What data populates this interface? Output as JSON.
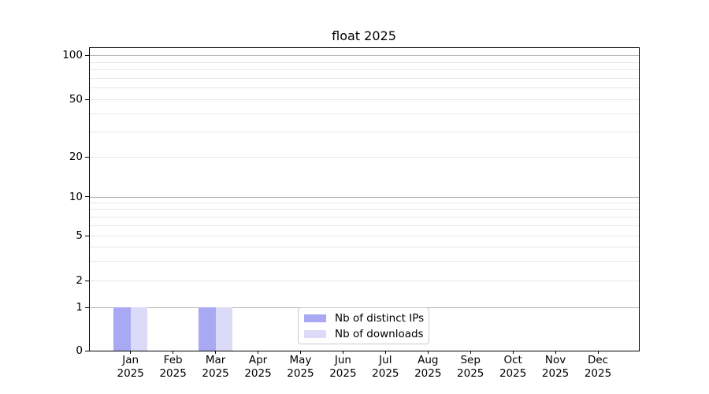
{
  "chart_data": {
    "type": "bar",
    "title": "float 2025",
    "categories": [
      "Jan",
      "Feb",
      "Mar",
      "Apr",
      "May",
      "Jun",
      "Jul",
      "Aug",
      "Sep",
      "Oct",
      "Nov",
      "Dec"
    ],
    "year_label": "2025",
    "series": [
      {
        "name": "Nb of distinct IPs",
        "color": "#a9a9f3",
        "values": [
          1,
          0,
          1,
          0,
          0,
          0,
          0,
          0,
          0,
          0,
          0,
          0
        ]
      },
      {
        "name": "Nb of downloads",
        "color": "#dbdbf8",
        "values": [
          1,
          0,
          1,
          0,
          0,
          0,
          0,
          0,
          0,
          0,
          0,
          0
        ]
      }
    ],
    "xlabel": "",
    "ylabel": "",
    "yticks_labeled": [
      0,
      1,
      2,
      5,
      10,
      20,
      50,
      100
    ],
    "y_gridlines_major": [
      1,
      10,
      100
    ],
    "y_gridlines_minor": [
      2,
      3,
      4,
      5,
      6,
      7,
      8,
      9,
      20,
      30,
      40,
      50,
      60,
      70,
      80,
      90
    ],
    "ylim": [
      0,
      113
    ],
    "scale": "log-like",
    "grid": true,
    "legend_position": "inside-bottom-center",
    "colors": {
      "grid_major": "#b3b3b3",
      "grid_minor": "#e7e7e7",
      "spine": "#000000",
      "background": "#ffffff"
    }
  }
}
